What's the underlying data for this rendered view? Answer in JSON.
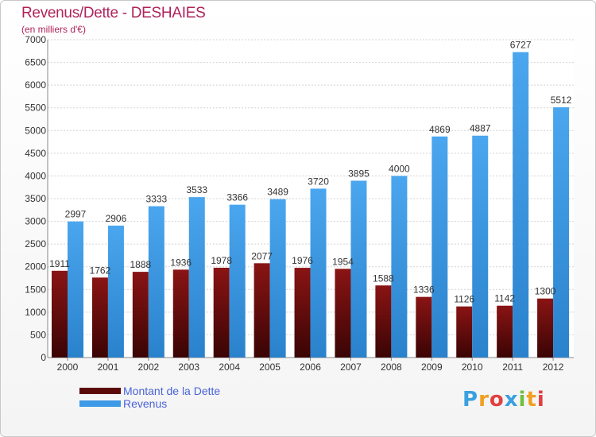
{
  "header": {
    "title": "Revenus/Dette - DESHAIES",
    "subtitle": "(en milliers d'€)"
  },
  "chart_data": {
    "type": "bar",
    "categories": [
      "2000",
      "2001",
      "2002",
      "2003",
      "2004",
      "2005",
      "2006",
      "2007",
      "2008",
      "2009",
      "2010",
      "2011",
      "2012"
    ],
    "series": [
      {
        "name": "Montant de la Dette",
        "color": "#7a1010",
        "values": [
          1911,
          1762,
          1888,
          1936,
          1978,
          2077,
          1976,
          1954,
          1588,
          1336,
          1126,
          1142,
          1300
        ]
      },
      {
        "name": "Revenus",
        "color": "#3d9ae6",
        "values": [
          2997,
          2906,
          3333,
          3533,
          3366,
          3489,
          3720,
          3895,
          4000,
          4869,
          4887,
          6727,
          5512
        ]
      }
    ],
    "yticks": [
      0,
      500,
      1000,
      1500,
      2000,
      2500,
      3000,
      3500,
      4000,
      4500,
      5000,
      5500,
      6000,
      6500,
      7000
    ],
    "ylim": [
      0,
      7000
    ],
    "grid": true,
    "legend_position": "bottom-left"
  },
  "legend": {
    "items": [
      {
        "label": "Montant de la Dette",
        "color": "#6a0a0a"
      },
      {
        "label": "Revenus",
        "color": "#3d9ae6"
      }
    ]
  },
  "logo": {
    "letters": [
      "P",
      "r",
      "o",
      "x",
      "i",
      "t",
      "i"
    ],
    "colors": [
      "#3aa0e0",
      "#f0a020",
      "#e04040",
      "#3aa0e0",
      "#70c040",
      "#f0a020",
      "#e04040"
    ]
  }
}
